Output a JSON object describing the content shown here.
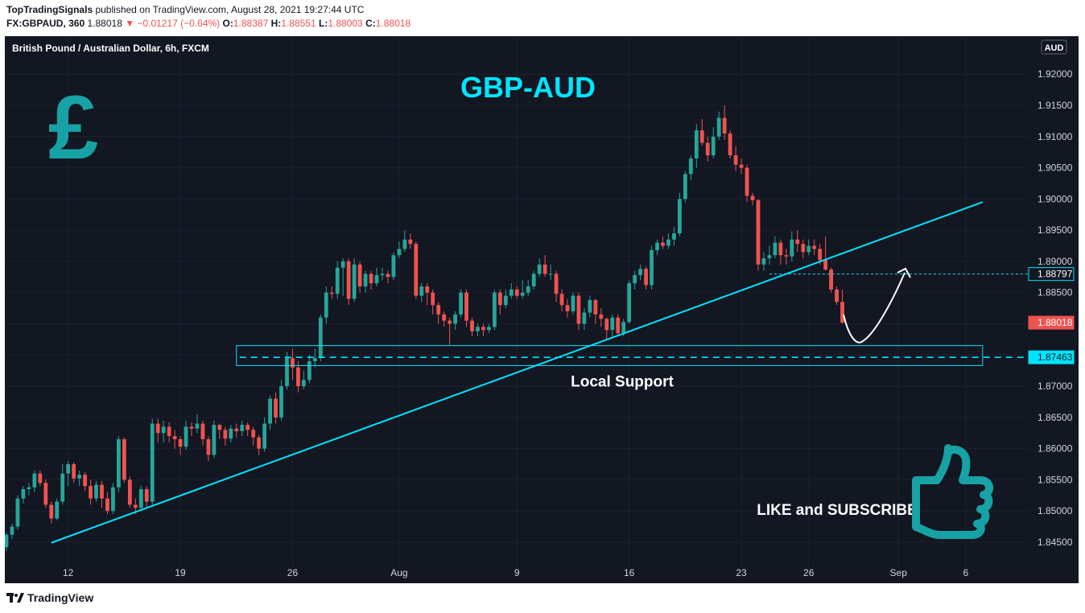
{
  "header": {
    "publisher": "TopTradingSignals",
    "published_text": " published on TradingView.com, August 28, 2021 19:27:44 UTC",
    "symbol": "FX:GBPAUD, 360",
    "last": "1.88018",
    "change": "▼ −0.01217 (−0.64%)",
    "o_label": "O:",
    "o": "1.88387",
    "h_label": "H:",
    "h": "1.88551",
    "l_label": "L:",
    "l": "1.88003",
    "c_label": "C:",
    "c": "1.88018"
  },
  "footer": {
    "brand": "TradingView"
  },
  "chart_data": {
    "type": "candlestick",
    "title": "GBP-AUD",
    "instrument_label": "British Pound / Australian Dollar, 6h, FXCM",
    "currency": "AUD",
    "ylim": [
      1.841,
      1.9248
    ],
    "y_ticks": [
      "1.84500",
      "1.85000",
      "1.85500",
      "1.86000",
      "1.86500",
      "1.87000",
      "1.87500",
      "1.88000",
      "1.88500",
      "1.89000",
      "1.89500",
      "1.90000",
      "1.90500",
      "1.91000",
      "1.91500",
      "1.92000"
    ],
    "x_ticks": [
      {
        "label": "12",
        "bar": 11
      },
      {
        "label": "19",
        "bar": 31
      },
      {
        "label": "26",
        "bar": 51
      },
      {
        "label": "Aug",
        "bar": 70
      },
      {
        "label": "9",
        "bar": 91
      },
      {
        "label": "16",
        "bar": 111
      },
      {
        "label": "23",
        "bar": 131
      },
      {
        "label": "26",
        "bar": 143
      },
      {
        "label": "Sep",
        "bar": 159
      },
      {
        "label": "6",
        "bar": 171
      }
    ],
    "bar_count": 150,
    "price_labels": [
      {
        "value": 1.88797,
        "text": "1.88797",
        "style": "outline"
      },
      {
        "value": 1.88018,
        "text": "1.88018",
        "style": "red"
      },
      {
        "value": 1.87463,
        "text": "1.87463",
        "style": "cyan"
      }
    ],
    "support_zone": {
      "label": "Local Support",
      "top": 1.8765,
      "bottom": 1.8733,
      "level": 1.87463,
      "start_bar": 41,
      "end_bar": 174
    },
    "trendline": {
      "p1": {
        "bar": 8,
        "price": 1.8449
      },
      "p2": {
        "bar": 174,
        "price": 1.8995
      }
    },
    "annotations": [
      "LIKE and SUBSCRIBE"
    ],
    "colors": {
      "up": "#26a69a",
      "down": "#ef5350",
      "line": "#00e5ff",
      "title": "#00e5ff",
      "icon": "#17a2a5",
      "bg": "#131722"
    },
    "candles": [
      [
        1.8442,
        1.8462,
        1.8436,
        1.8465
      ],
      [
        1.8462,
        1.8475,
        1.8455,
        1.848
      ],
      [
        1.8475,
        1.852,
        1.847,
        1.8525
      ],
      [
        1.852,
        1.8535,
        1.8512,
        1.854
      ],
      [
        1.8535,
        1.8538,
        1.8525,
        1.8545
      ],
      [
        1.8538,
        1.856,
        1.853,
        1.8565
      ],
      [
        1.856,
        1.8545,
        1.854,
        1.8565
      ],
      [
        1.8545,
        1.851,
        1.8505,
        1.855
      ],
      [
        1.851,
        1.8488,
        1.848,
        1.8515
      ],
      [
        1.8488,
        1.8515,
        1.8485,
        1.852
      ],
      [
        1.8515,
        1.856,
        1.851,
        1.8575
      ],
      [
        1.856,
        1.8575,
        1.854,
        1.858
      ],
      [
        1.8575,
        1.8552,
        1.8545,
        1.8578
      ],
      [
        1.8552,
        1.8558,
        1.854,
        1.8565
      ],
      [
        1.8558,
        1.854,
        1.8532,
        1.8562
      ],
      [
        1.854,
        1.852,
        1.851,
        1.855
      ],
      [
        1.852,
        1.8542,
        1.8515,
        1.8548
      ],
      [
        1.8542,
        1.852,
        1.8505,
        1.8548
      ],
      [
        1.852,
        1.85,
        1.8495,
        1.853
      ],
      [
        1.85,
        1.8538,
        1.8495,
        1.8545
      ],
      [
        1.8538,
        1.8615,
        1.853,
        1.862
      ],
      [
        1.8615,
        1.855,
        1.8545,
        1.8618
      ],
      [
        1.855,
        1.851,
        1.8505,
        1.8555
      ],
      [
        1.851,
        1.8505,
        1.8495,
        1.852
      ],
      [
        1.8505,
        1.8535,
        1.85,
        1.854
      ],
      [
        1.8535,
        1.8515,
        1.8505,
        1.854
      ],
      [
        1.8515,
        1.864,
        1.851,
        1.8648
      ],
      [
        1.864,
        1.8625,
        1.861,
        1.8648
      ],
      [
        1.8625,
        1.8635,
        1.861,
        1.8645
      ],
      [
        1.8635,
        1.862,
        1.861,
        1.8642
      ],
      [
        1.862,
        1.8615,
        1.86,
        1.863
      ],
      [
        1.8615,
        1.8603,
        1.859,
        1.862
      ],
      [
        1.8603,
        1.8635,
        1.8598,
        1.8645
      ],
      [
        1.8635,
        1.8632,
        1.862,
        1.8642
      ],
      [
        1.8632,
        1.864,
        1.8625,
        1.8655
      ],
      [
        1.864,
        1.8615,
        1.8605,
        1.8645
      ],
      [
        1.8615,
        1.859,
        1.858,
        1.862
      ],
      [
        1.859,
        1.8638,
        1.8585,
        1.8645
      ],
      [
        1.8638,
        1.863,
        1.8615,
        1.864
      ],
      [
        1.863,
        1.8616,
        1.8605,
        1.8635
      ],
      [
        1.8616,
        1.8632,
        1.861,
        1.8638
      ],
      [
        1.8632,
        1.8628,
        1.8618,
        1.864
      ],
      [
        1.8628,
        1.8638,
        1.862,
        1.8645
      ],
      [
        1.8638,
        1.863,
        1.862,
        1.8642
      ],
      [
        1.863,
        1.8618,
        1.8605,
        1.8635
      ],
      [
        1.8618,
        1.86,
        1.859,
        1.8622
      ],
      [
        1.86,
        1.864,
        1.8595,
        1.865
      ],
      [
        1.864,
        1.868,
        1.863,
        1.8685
      ],
      [
        1.868,
        1.865,
        1.864,
        1.869
      ],
      [
        1.865,
        1.87,
        1.8645,
        1.871
      ],
      [
        1.87,
        1.8745,
        1.8695,
        1.8755
      ],
      [
        1.8745,
        1.873,
        1.871,
        1.876
      ],
      [
        1.873,
        1.87,
        1.869,
        1.874
      ],
      [
        1.87,
        1.871,
        1.8695,
        1.8725
      ],
      [
        1.871,
        1.874,
        1.8705,
        1.875
      ],
      [
        1.874,
        1.8745,
        1.873,
        1.876
      ],
      [
        1.8745,
        1.881,
        1.874,
        1.8815
      ],
      [
        1.881,
        1.885,
        1.88,
        1.886
      ],
      [
        1.885,
        1.8848,
        1.884,
        1.886
      ],
      [
        1.8848,
        1.889,
        1.884,
        1.89
      ],
      [
        1.889,
        1.89,
        1.8845,
        1.8905
      ],
      [
        1.89,
        1.884,
        1.883,
        1.8905
      ],
      [
        1.884,
        1.8895,
        1.8835,
        1.8905
      ],
      [
        1.8895,
        1.886,
        1.885,
        1.89
      ],
      [
        1.886,
        1.888,
        1.885,
        1.8885
      ],
      [
        1.888,
        1.8865,
        1.8855,
        1.8885
      ],
      [
        1.8865,
        1.8878,
        1.886,
        1.889
      ],
      [
        1.8878,
        1.888,
        1.887,
        1.889
      ],
      [
        1.888,
        1.8875,
        1.8865,
        1.8885
      ],
      [
        1.8875,
        1.891,
        1.887,
        1.8915
      ],
      [
        1.891,
        1.892,
        1.8905,
        1.8932
      ],
      [
        1.892,
        1.8935,
        1.8915,
        1.895
      ],
      [
        1.8935,
        1.8928,
        1.892,
        1.8945
      ],
      [
        1.8928,
        1.8845,
        1.884,
        1.8932
      ],
      [
        1.8845,
        1.886,
        1.8835,
        1.8865
      ],
      [
        1.886,
        1.885,
        1.883,
        1.8865
      ],
      [
        1.885,
        1.883,
        1.8815,
        1.8855
      ],
      [
        1.883,
        1.8815,
        1.88,
        1.8835
      ],
      [
        1.8815,
        1.8805,
        1.8795,
        1.882
      ],
      [
        1.8805,
        1.88,
        1.8765,
        1.881
      ],
      [
        1.88,
        1.8815,
        1.879,
        1.882
      ],
      [
        1.8815,
        1.885,
        1.881,
        1.8855
      ],
      [
        1.885,
        1.8805,
        1.8795,
        1.8855
      ],
      [
        1.8805,
        1.8788,
        1.878,
        1.881
      ],
      [
        1.8788,
        1.8795,
        1.878,
        1.88
      ],
      [
        1.8795,
        1.879,
        1.878,
        1.88
      ],
      [
        1.879,
        1.8795,
        1.8785,
        1.88
      ],
      [
        1.8795,
        1.885,
        1.879,
        1.8855
      ],
      [
        1.885,
        1.883,
        1.8815,
        1.8855
      ],
      [
        1.883,
        1.8845,
        1.8825,
        1.8855
      ],
      [
        1.8845,
        1.8855,
        1.884,
        1.8865
      ],
      [
        1.8855,
        1.8845,
        1.884,
        1.886
      ],
      [
        1.8845,
        1.885,
        1.884,
        1.887
      ],
      [
        1.885,
        1.886,
        1.8845,
        1.887
      ],
      [
        1.886,
        1.888,
        1.8855,
        1.8885
      ],
      [
        1.888,
        1.8895,
        1.8875,
        1.8905
      ],
      [
        1.8895,
        1.888,
        1.8875,
        1.891
      ],
      [
        1.888,
        1.888,
        1.887,
        1.8895
      ],
      [
        1.888,
        1.8848,
        1.8835,
        1.8885
      ],
      [
        1.8848,
        1.883,
        1.882,
        1.8855
      ],
      [
        1.883,
        1.882,
        1.881,
        1.884
      ],
      [
        1.882,
        1.8845,
        1.8815,
        1.885
      ],
      [
        1.8845,
        1.88,
        1.879,
        1.885
      ],
      [
        1.88,
        1.8818,
        1.879,
        1.8825
      ],
      [
        1.8818,
        1.8838,
        1.881,
        1.8845
      ],
      [
        1.8838,
        1.8815,
        1.88,
        1.884
      ],
      [
        1.8815,
        1.8808,
        1.8795,
        1.8825
      ],
      [
        1.8808,
        1.879,
        1.8775,
        1.881
      ],
      [
        1.879,
        1.881,
        1.878,
        1.8815
      ],
      [
        1.881,
        1.8785,
        1.878,
        1.8815
      ],
      [
        1.8785,
        1.8803,
        1.878,
        1.8808
      ],
      [
        1.8803,
        1.8865,
        1.88,
        1.887
      ],
      [
        1.8865,
        1.8878,
        1.8855,
        1.8885
      ],
      [
        1.8878,
        1.8888,
        1.887,
        1.8895
      ],
      [
        1.8888,
        1.8862,
        1.8855,
        1.8892
      ],
      [
        1.8862,
        1.8918,
        1.8855,
        1.8925
      ],
      [
        1.8918,
        1.893,
        1.891,
        1.8935
      ],
      [
        1.893,
        1.8925,
        1.892,
        1.894
      ],
      [
        1.8925,
        1.8935,
        1.892,
        1.8945
      ],
      [
        1.8935,
        1.8945,
        1.8925,
        1.8955
      ],
      [
        1.8945,
        1.9,
        1.894,
        1.901
      ],
      [
        1.9,
        1.904,
        1.8995,
        1.9045
      ],
      [
        1.904,
        1.9065,
        1.903,
        1.907
      ],
      [
        1.9065,
        1.911,
        1.905,
        1.912
      ],
      [
        1.911,
        1.909,
        1.9085,
        1.9128
      ],
      [
        1.909,
        1.907,
        1.906,
        1.91
      ],
      [
        1.907,
        1.91,
        1.9065,
        1.9115
      ],
      [
        1.91,
        1.913,
        1.9095,
        1.914
      ],
      [
        1.913,
        1.9105,
        1.9095,
        1.915
      ],
      [
        1.9105,
        1.907,
        1.9065,
        1.911
      ],
      [
        1.907,
        1.9055,
        1.9045,
        1.9085
      ],
      [
        1.9055,
        1.905,
        1.904,
        1.9065
      ],
      [
        1.905,
        1.9005,
        1.8995,
        1.9055
      ],
      [
        1.9005,
        1.8998,
        1.899,
        1.901
      ],
      [
        1.8998,
        1.8895,
        1.8885,
        1.9
      ],
      [
        1.8895,
        1.8905,
        1.8885,
        1.8915
      ],
      [
        1.8905,
        1.891,
        1.8895,
        1.8925
      ],
      [
        1.891,
        1.893,
        1.8905,
        1.894
      ],
      [
        1.893,
        1.891,
        1.8895,
        1.8935
      ],
      [
        1.891,
        1.8908,
        1.8895,
        1.892
      ],
      [
        1.8908,
        1.8935,
        1.89,
        1.8948
      ],
      [
        1.8935,
        1.8928,
        1.8915,
        1.895
      ],
      [
        1.8928,
        1.8915,
        1.8905,
        1.8935
      ],
      [
        1.8915,
        1.8925,
        1.891,
        1.8935
      ],
      [
        1.8925,
        1.892,
        1.891,
        1.8935
      ],
      [
        1.892,
        1.8902,
        1.8895,
        1.8928
      ],
      [
        1.8902,
        1.8887,
        1.8885,
        1.894
      ],
      [
        1.8887,
        1.8855,
        1.885,
        1.889
      ],
      [
        1.8855,
        1.8835,
        1.883,
        1.886
      ],
      [
        1.8835,
        1.8802,
        1.88,
        1.8855
      ]
    ]
  }
}
